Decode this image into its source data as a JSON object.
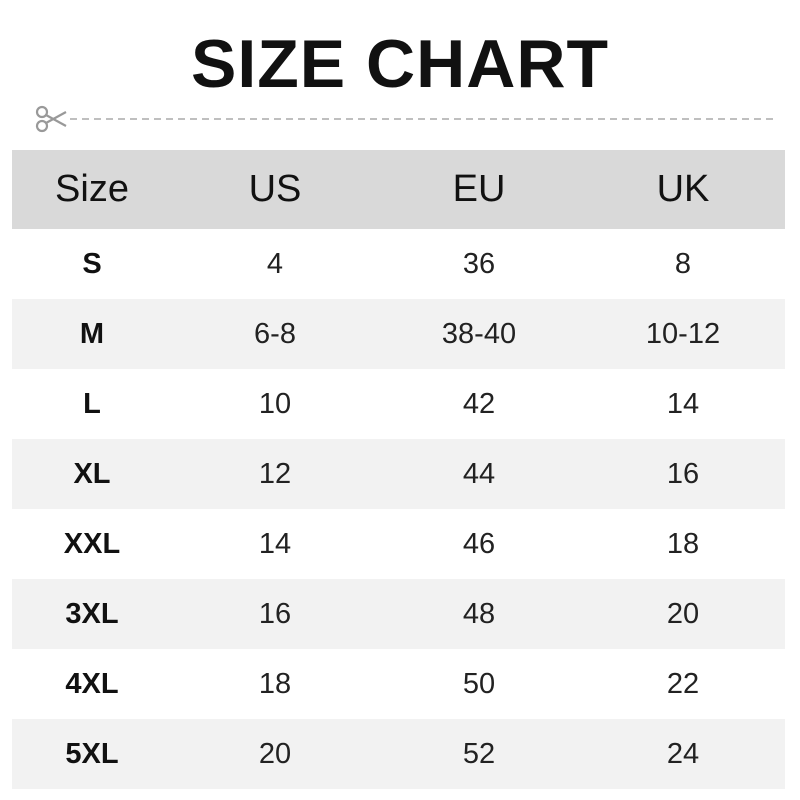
{
  "title": "SIZE CHART",
  "icons": {
    "cut_line": "scissors-icon"
  },
  "chart_data": {
    "type": "table",
    "title": "SIZE CHART",
    "columns": [
      "Size",
      "US",
      "EU",
      "UK"
    ],
    "rows": [
      [
        "S",
        "4",
        "36",
        "8"
      ],
      [
        "M",
        "6-8",
        "38-40",
        "10-12"
      ],
      [
        "L",
        "10",
        "42",
        "14"
      ],
      [
        "XL",
        "12",
        "44",
        "16"
      ],
      [
        "XXL",
        "14",
        "46",
        "18"
      ],
      [
        "3XL",
        "16",
        "48",
        "20"
      ],
      [
        "4XL",
        "18",
        "50",
        "22"
      ],
      [
        "5XL",
        "20",
        "52",
        "24"
      ]
    ],
    "colors": {
      "header_bg": "#d9d9d9",
      "alt_row_bg": "#f2f2f2",
      "row_bg": "#ffffff"
    }
  }
}
